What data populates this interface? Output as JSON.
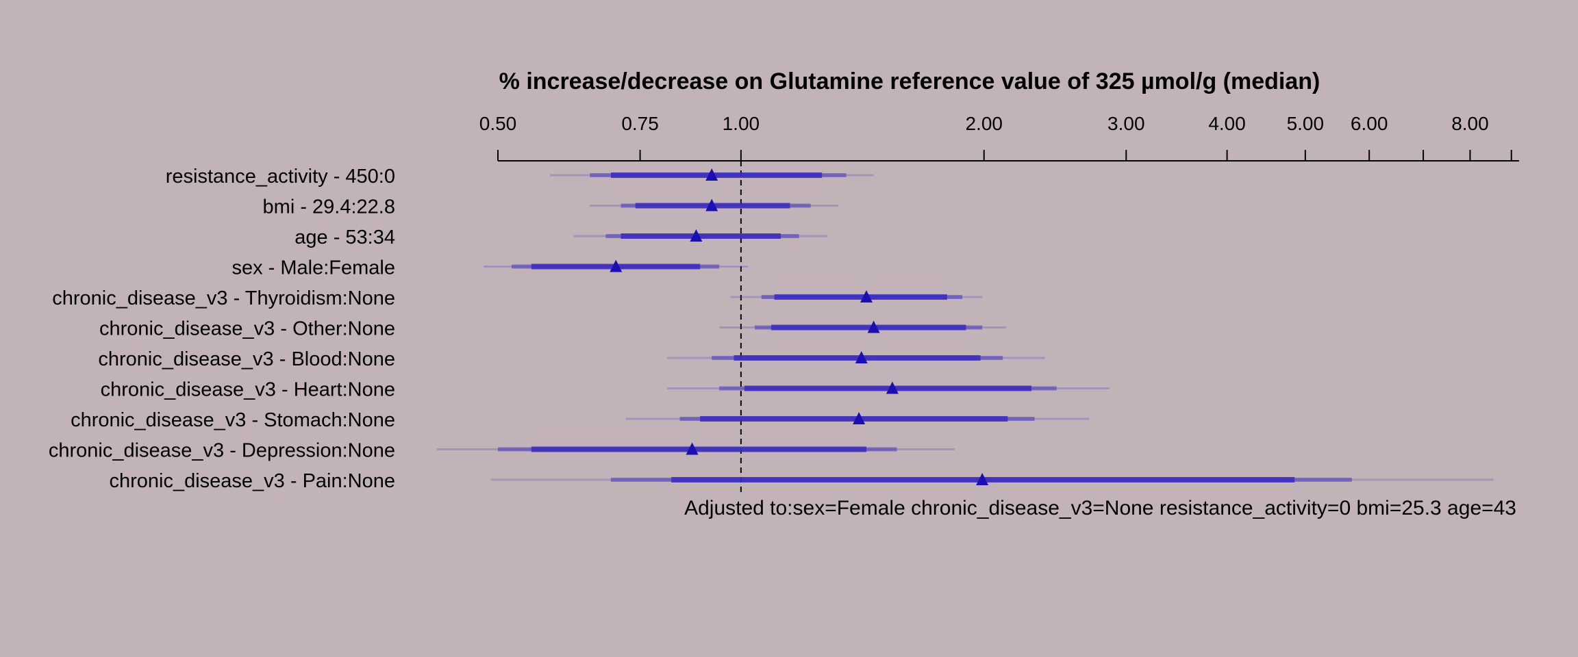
{
  "chart_data": {
    "type": "forest",
    "title": "% increase/decrease on Glutamine reference value of 325 µmol/g (median)",
    "x_scale": "log",
    "xlim": [
      0.5,
      9.2
    ],
    "x_ticks": [
      0.5,
      0.75,
      1,
      2,
      3,
      4,
      5,
      6,
      7,
      8,
      9
    ],
    "x_tick_labels": [
      "0.50",
      "0.75",
      "1.00",
      "2.00",
      "3.00",
      "4.00",
      "5.00",
      "6.00",
      "",
      "8.00",
      ""
    ],
    "reference_line": 1.0,
    "footnote": "Adjusted to:sex=Female chronic_disease_v3=None resistance_activity=0 bmi=25.3 age=43",
    "color": "#3a2bbd",
    "point_color": "#1a0fb0",
    "rows": [
      {
        "label": "resistance_activity - 450:0",
        "estimate": 0.92,
        "ci_inner": [
          0.69,
          1.26
        ],
        "ci_mid": [
          0.65,
          1.35
        ],
        "ci_outer": [
          0.58,
          1.46
        ]
      },
      {
        "label": "bmi - 29.4:22.8",
        "estimate": 0.92,
        "ci_inner": [
          0.74,
          1.15
        ],
        "ci_mid": [
          0.71,
          1.22
        ],
        "ci_outer": [
          0.65,
          1.32
        ]
      },
      {
        "label": "age - 53:34",
        "estimate": 0.88,
        "ci_inner": [
          0.71,
          1.12
        ],
        "ci_mid": [
          0.68,
          1.18
        ],
        "ci_outer": [
          0.62,
          1.28
        ]
      },
      {
        "label": "sex - Male:Female",
        "estimate": 0.7,
        "ci_inner": [
          0.55,
          0.89
        ],
        "ci_mid": [
          0.52,
          0.94
        ],
        "ci_outer": [
          0.48,
          1.02
        ]
      },
      {
        "label": "chronic_disease_v3 - Thyroidism:None",
        "estimate": 1.43,
        "ci_inner": [
          1.1,
          1.8
        ],
        "ci_mid": [
          1.06,
          1.88
        ],
        "ci_outer": [
          0.97,
          1.99
        ]
      },
      {
        "label": "chronic_disease_v3 - Other:None",
        "estimate": 1.46,
        "ci_inner": [
          1.09,
          1.9
        ],
        "ci_mid": [
          1.04,
          1.99
        ],
        "ci_outer": [
          0.94,
          2.13
        ]
      },
      {
        "label": "chronic_disease_v3 - Blood:None",
        "estimate": 1.41,
        "ci_inner": [
          0.98,
          1.98
        ],
        "ci_mid": [
          0.92,
          2.11
        ],
        "ci_outer": [
          0.81,
          2.38
        ]
      },
      {
        "label": "chronic_disease_v3 - Heart:None",
        "estimate": 1.54,
        "ci_inner": [
          1.01,
          2.29
        ],
        "ci_mid": [
          0.94,
          2.46
        ],
        "ci_outer": [
          0.81,
          2.86
        ]
      },
      {
        "label": "chronic_disease_v3 - Stomach:None",
        "estimate": 1.4,
        "ci_inner": [
          0.89,
          2.14
        ],
        "ci_mid": [
          0.84,
          2.31
        ],
        "ci_outer": [
          0.72,
          2.7
        ]
      },
      {
        "label": "chronic_disease_v3 - Depression:None",
        "estimate": 0.87,
        "ci_inner": [
          0.55,
          1.43
        ],
        "ci_mid": [
          0.5,
          1.56
        ],
        "ci_outer": [
          0.42,
          1.84
        ]
      },
      {
        "label": "chronic_disease_v3 - Pain:None",
        "estimate": 1.99,
        "ci_inner": [
          0.82,
          4.85
        ],
        "ci_mid": [
          0.69,
          5.71
        ],
        "ci_outer": [
          0.49,
          8.55
        ]
      }
    ]
  }
}
